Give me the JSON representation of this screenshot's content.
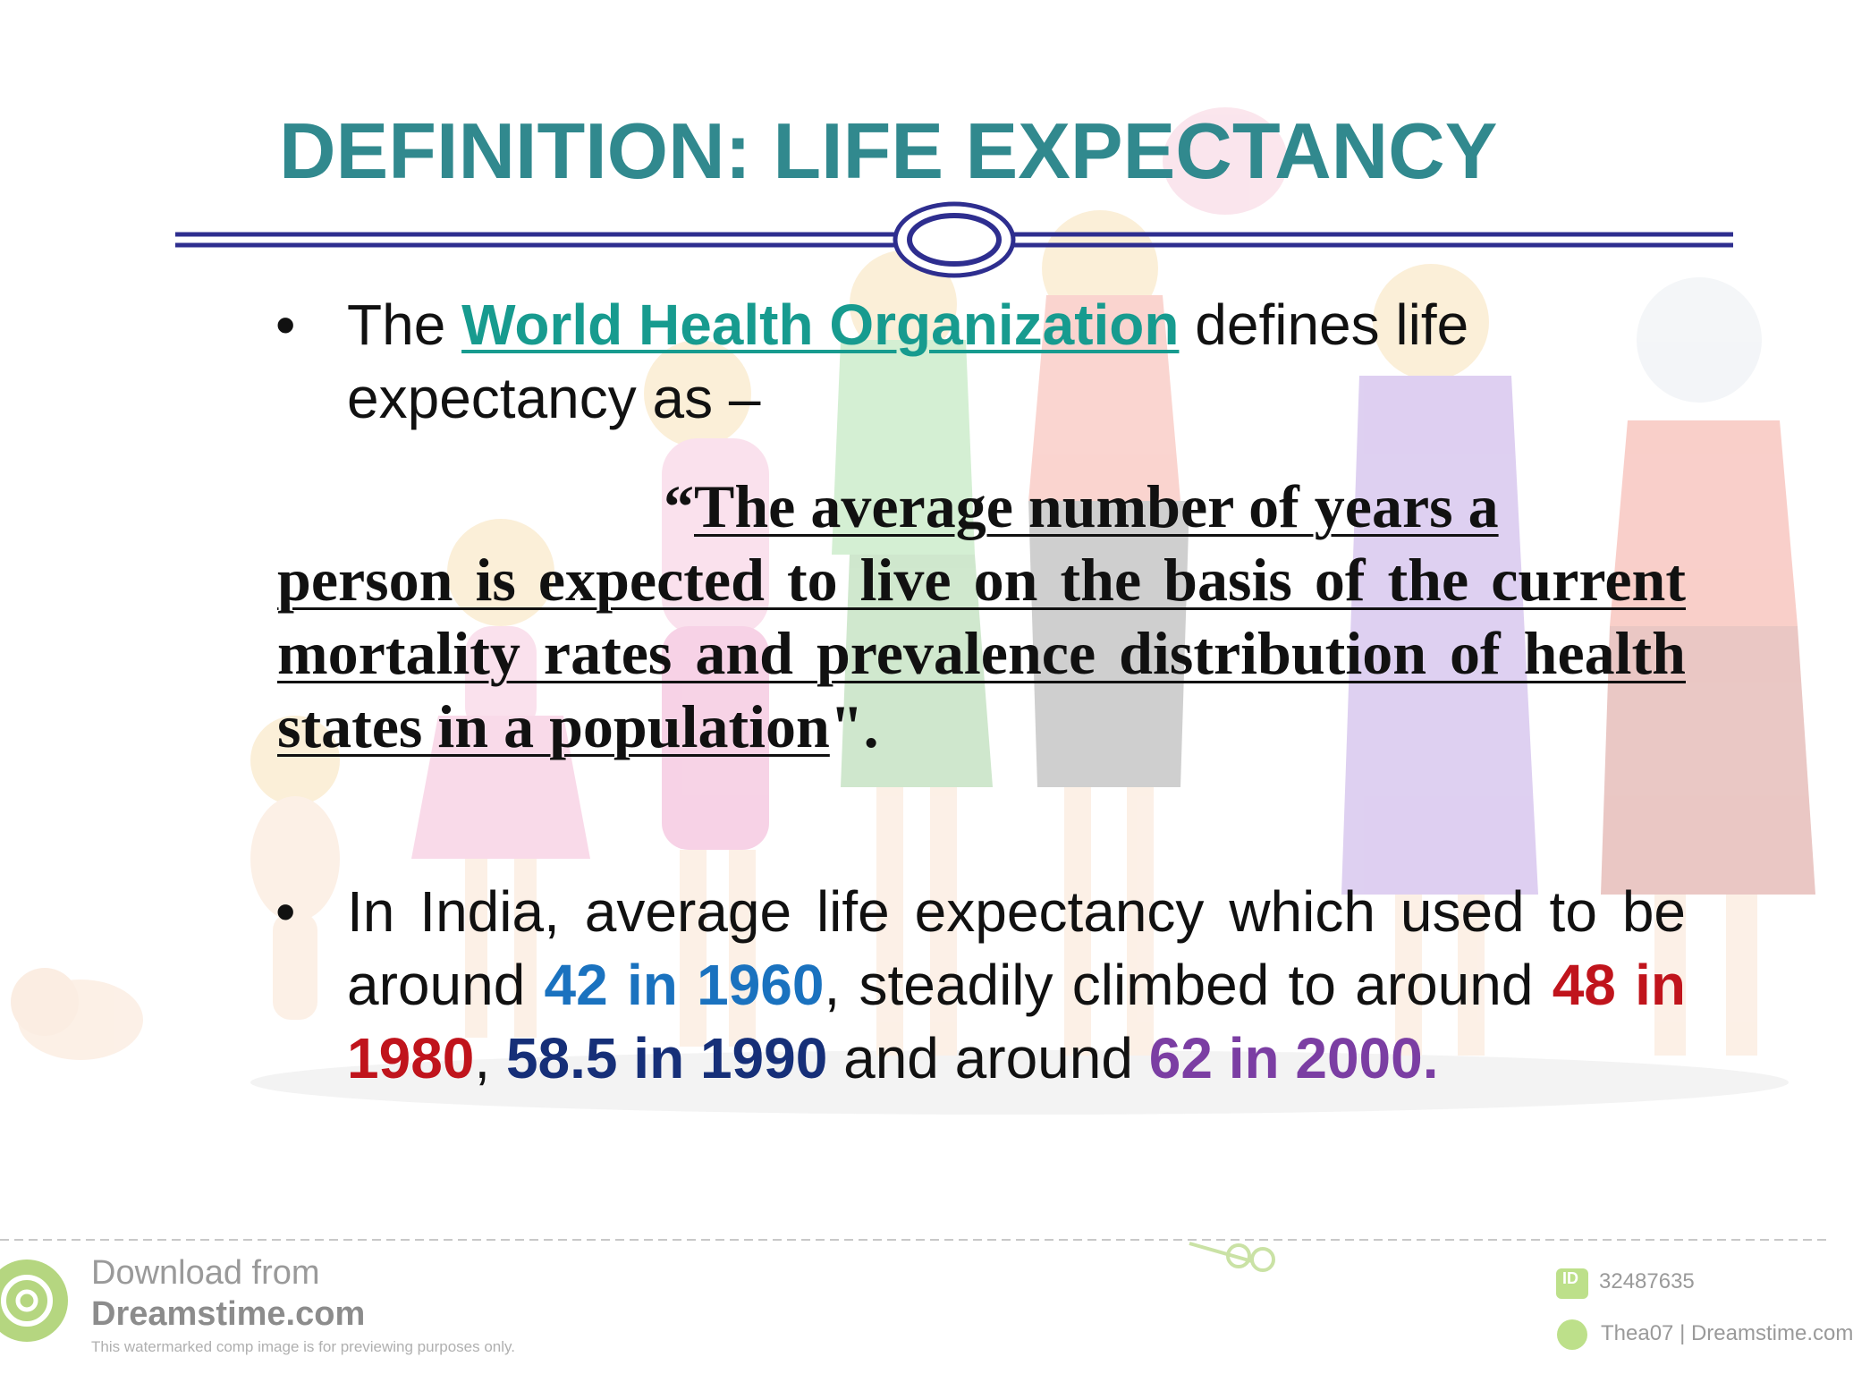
{
  "slide": {
    "title": "DEFINITION: LIFE EXPECTANCY",
    "bullet_symbol": "•",
    "bullet1": {
      "pre": "The ",
      "link": "World Health Organization",
      "post": " defines life expectancy as –"
    },
    "quote": {
      "open": "“",
      "line1": "The average number of years a",
      "body": "person is expected to live on the basis of the current mortality rates and prevalence distribution of health states in a population",
      "close": "\"."
    },
    "bullet2": {
      "t1": "In India, average life expectancy which used to be around ",
      "h1": "42 in 1960",
      "t2": ", steadily climbed to around ",
      "h2": "48 in 1980",
      "t3": ", ",
      "h3": "58.5 in 1990",
      "t4": " and around ",
      "h4": "62 in 2000."
    },
    "colors": {
      "title": "#31898e",
      "link": "#179b8f",
      "highlight_1960": "#1a72bf",
      "highlight_1980": "#c0141c",
      "highlight_1990": "#162f78",
      "highlight_2000": "#7b3ea3",
      "divider": "#2e2e8f"
    }
  },
  "watermark": {
    "line1": "Download from",
    "line2": "Dreamstime.com",
    "line3": "This watermarked comp image is for previewing purposes only.",
    "id_label": "ID",
    "id_value": "32487635",
    "credit": "Thea07 | Dreamstime.com"
  }
}
